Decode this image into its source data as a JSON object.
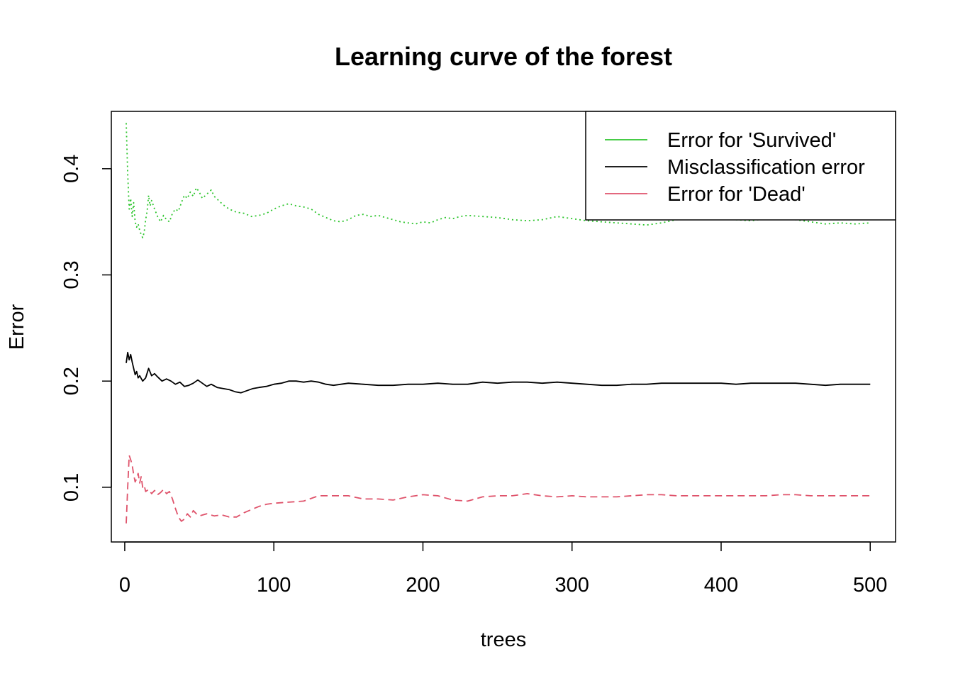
{
  "chart_data": {
    "type": "line",
    "title": "Learning curve of the forest",
    "xlabel": "trees",
    "ylabel": "Error",
    "xlim": [
      -9,
      517
    ],
    "ylim": [
      0.0485,
      0.454
    ],
    "x_ticks": [
      0,
      100,
      200,
      300,
      400,
      500
    ],
    "x_tick_labels": [
      "0",
      "100",
      "200",
      "300",
      "400",
      "500"
    ],
    "y_ticks": [
      0.1,
      0.2,
      0.3,
      0.4
    ],
    "y_tick_labels": [
      "0.1",
      "0.2",
      "0.3",
      "0.4"
    ],
    "grid": false,
    "legend_position": "top-right",
    "legend": [
      {
        "label": "Error for 'Survived'",
        "color": "#2DC52D"
      },
      {
        "label": "Misclassification error",
        "color": "#000000"
      },
      {
        "label": "Error for 'Dead'",
        "color": "#DF536B"
      }
    ],
    "series": [
      {
        "name": "Error for 'Survived'",
        "color": "#2DC52D",
        "dash": "dotted",
        "points": [
          [
            1,
            0.443
          ],
          [
            2,
            0.395
          ],
          [
            3,
            0.362
          ],
          [
            4,
            0.372
          ],
          [
            5,
            0.355
          ],
          [
            6,
            0.368
          ],
          [
            7,
            0.35
          ],
          [
            8,
            0.345
          ],
          [
            9,
            0.348
          ],
          [
            10,
            0.342
          ],
          [
            11,
            0.338
          ],
          [
            12,
            0.335
          ],
          [
            13,
            0.34
          ],
          [
            14,
            0.352
          ],
          [
            15,
            0.36
          ],
          [
            16,
            0.375
          ],
          [
            17,
            0.365
          ],
          [
            18,
            0.37
          ],
          [
            20,
            0.362
          ],
          [
            22,
            0.355
          ],
          [
            24,
            0.35
          ],
          [
            26,
            0.356
          ],
          [
            28,
            0.352
          ],
          [
            30,
            0.35
          ],
          [
            32,
            0.358
          ],
          [
            34,
            0.362
          ],
          [
            36,
            0.36
          ],
          [
            38,
            0.368
          ],
          [
            40,
            0.375
          ],
          [
            42,
            0.372
          ],
          [
            44,
            0.378
          ],
          [
            46,
            0.374
          ],
          [
            48,
            0.382
          ],
          [
            50,
            0.378
          ],
          [
            52,
            0.372
          ],
          [
            55,
            0.376
          ],
          [
            58,
            0.38
          ],
          [
            60,
            0.374
          ],
          [
            63,
            0.37
          ],
          [
            66,
            0.366
          ],
          [
            70,
            0.362
          ],
          [
            75,
            0.359
          ],
          [
            80,
            0.358
          ],
          [
            85,
            0.355
          ],
          [
            90,
            0.356
          ],
          [
            95,
            0.358
          ],
          [
            100,
            0.362
          ],
          [
            105,
            0.365
          ],
          [
            110,
            0.367
          ],
          [
            115,
            0.365
          ],
          [
            120,
            0.364
          ],
          [
            125,
            0.362
          ],
          [
            130,
            0.357
          ],
          [
            135,
            0.354
          ],
          [
            140,
            0.351
          ],
          [
            145,
            0.35
          ],
          [
            150,
            0.352
          ],
          [
            155,
            0.356
          ],
          [
            160,
            0.357
          ],
          [
            165,
            0.355
          ],
          [
            170,
            0.356
          ],
          [
            175,
            0.354
          ],
          [
            180,
            0.352
          ],
          [
            185,
            0.35
          ],
          [
            190,
            0.349
          ],
          [
            195,
            0.348
          ],
          [
            200,
            0.35
          ],
          [
            205,
            0.349
          ],
          [
            210,
            0.352
          ],
          [
            215,
            0.354
          ],
          [
            220,
            0.353
          ],
          [
            225,
            0.355
          ],
          [
            230,
            0.356
          ],
          [
            240,
            0.355
          ],
          [
            250,
            0.354
          ],
          [
            260,
            0.352
          ],
          [
            270,
            0.351
          ],
          [
            280,
            0.352
          ],
          [
            290,
            0.355
          ],
          [
            300,
            0.353
          ],
          [
            310,
            0.351
          ],
          [
            320,
            0.35
          ],
          [
            330,
            0.349
          ],
          [
            340,
            0.348
          ],
          [
            350,
            0.347
          ],
          [
            360,
            0.349
          ],
          [
            370,
            0.352
          ],
          [
            380,
            0.353
          ],
          [
            390,
            0.354
          ],
          [
            400,
            0.353
          ],
          [
            410,
            0.352
          ],
          [
            420,
            0.351
          ],
          [
            430,
            0.353
          ],
          [
            440,
            0.354
          ],
          [
            450,
            0.352
          ],
          [
            460,
            0.35
          ],
          [
            470,
            0.348
          ],
          [
            480,
            0.349
          ],
          [
            490,
            0.348
          ],
          [
            500,
            0.349
          ]
        ]
      },
      {
        "name": "Misclassification error",
        "color": "#000000",
        "dash": "solid",
        "points": [
          [
            1,
            0.217
          ],
          [
            2,
            0.227
          ],
          [
            3,
            0.22
          ],
          [
            4,
            0.225
          ],
          [
            5,
            0.218
          ],
          [
            6,
            0.212
          ],
          [
            7,
            0.206
          ],
          [
            8,
            0.209
          ],
          [
            9,
            0.203
          ],
          [
            10,
            0.205
          ],
          [
            12,
            0.2
          ],
          [
            14,
            0.203
          ],
          [
            16,
            0.212
          ],
          [
            18,
            0.205
          ],
          [
            20,
            0.207
          ],
          [
            22,
            0.204
          ],
          [
            25,
            0.2
          ],
          [
            28,
            0.202
          ],
          [
            31,
            0.2
          ],
          [
            34,
            0.197
          ],
          [
            37,
            0.199
          ],
          [
            40,
            0.195
          ],
          [
            43,
            0.196
          ],
          [
            46,
            0.198
          ],
          [
            49,
            0.201
          ],
          [
            52,
            0.198
          ],
          [
            55,
            0.195
          ],
          [
            58,
            0.197
          ],
          [
            62,
            0.194
          ],
          [
            66,
            0.193
          ],
          [
            70,
            0.192
          ],
          [
            74,
            0.19
          ],
          [
            78,
            0.189
          ],
          [
            82,
            0.191
          ],
          [
            86,
            0.193
          ],
          [
            90,
            0.194
          ],
          [
            95,
            0.195
          ],
          [
            100,
            0.197
          ],
          [
            105,
            0.198
          ],
          [
            110,
            0.2
          ],
          [
            115,
            0.2
          ],
          [
            120,
            0.199
          ],
          [
            125,
            0.2
          ],
          [
            130,
            0.199
          ],
          [
            135,
            0.197
          ],
          [
            140,
            0.196
          ],
          [
            145,
            0.197
          ],
          [
            150,
            0.198
          ],
          [
            160,
            0.197
          ],
          [
            170,
            0.196
          ],
          [
            180,
            0.196
          ],
          [
            190,
            0.197
          ],
          [
            200,
            0.197
          ],
          [
            210,
            0.198
          ],
          [
            220,
            0.197
          ],
          [
            230,
            0.197
          ],
          [
            240,
            0.199
          ],
          [
            250,
            0.198
          ],
          [
            260,
            0.199
          ],
          [
            270,
            0.199
          ],
          [
            280,
            0.198
          ],
          [
            290,
            0.199
          ],
          [
            300,
            0.198
          ],
          [
            310,
            0.197
          ],
          [
            320,
            0.196
          ],
          [
            330,
            0.196
          ],
          [
            340,
            0.197
          ],
          [
            350,
            0.197
          ],
          [
            360,
            0.198
          ],
          [
            370,
            0.198
          ],
          [
            380,
            0.198
          ],
          [
            390,
            0.198
          ],
          [
            400,
            0.198
          ],
          [
            410,
            0.197
          ],
          [
            420,
            0.198
          ],
          [
            430,
            0.198
          ],
          [
            440,
            0.198
          ],
          [
            450,
            0.198
          ],
          [
            460,
            0.197
          ],
          [
            470,
            0.196
          ],
          [
            480,
            0.197
          ],
          [
            490,
            0.197
          ],
          [
            500,
            0.197
          ]
        ]
      },
      {
        "name": "Error for 'Dead'",
        "color": "#DF536B",
        "dash": "dashed",
        "points": [
          [
            1,
            0.066
          ],
          [
            2,
            0.1
          ],
          [
            3,
            0.13
          ],
          [
            4,
            0.126
          ],
          [
            5,
            0.121
          ],
          [
            6,
            0.112
          ],
          [
            7,
            0.105
          ],
          [
            8,
            0.108
          ],
          [
            9,
            0.113
          ],
          [
            10,
            0.104
          ],
          [
            11,
            0.11
          ],
          [
            12,
            0.1
          ],
          [
            13,
            0.102
          ],
          [
            14,
            0.096
          ],
          [
            16,
            0.098
          ],
          [
            18,
            0.094
          ],
          [
            20,
            0.097
          ],
          [
            22,
            0.093
          ],
          [
            24,
            0.095
          ],
          [
            26,
            0.098
          ],
          [
            28,
            0.094
          ],
          [
            30,
            0.096
          ],
          [
            32,
            0.089
          ],
          [
            34,
            0.08
          ],
          [
            36,
            0.072
          ],
          [
            38,
            0.068
          ],
          [
            40,
            0.07
          ],
          [
            42,
            0.075
          ],
          [
            44,
            0.072
          ],
          [
            46,
            0.078
          ],
          [
            48,
            0.075
          ],
          [
            50,
            0.073
          ],
          [
            55,
            0.075
          ],
          [
            60,
            0.073
          ],
          [
            65,
            0.074
          ],
          [
            70,
            0.072
          ],
          [
            75,
            0.072
          ],
          [
            80,
            0.076
          ],
          [
            85,
            0.079
          ],
          [
            90,
            0.082
          ],
          [
            95,
            0.084
          ],
          [
            100,
            0.085
          ],
          [
            110,
            0.086
          ],
          [
            120,
            0.087
          ],
          [
            130,
            0.092
          ],
          [
            140,
            0.092
          ],
          [
            150,
            0.092
          ],
          [
            160,
            0.089
          ],
          [
            170,
            0.089
          ],
          [
            180,
            0.088
          ],
          [
            190,
            0.091
          ],
          [
            200,
            0.093
          ],
          [
            210,
            0.092
          ],
          [
            220,
            0.088
          ],
          [
            230,
            0.087
          ],
          [
            240,
            0.091
          ],
          [
            250,
            0.092
          ],
          [
            260,
            0.092
          ],
          [
            270,
            0.094
          ],
          [
            280,
            0.092
          ],
          [
            290,
            0.091
          ],
          [
            300,
            0.092
          ],
          [
            310,
            0.091
          ],
          [
            320,
            0.091
          ],
          [
            330,
            0.091
          ],
          [
            340,
            0.092
          ],
          [
            350,
            0.093
          ],
          [
            360,
            0.093
          ],
          [
            370,
            0.092
          ],
          [
            380,
            0.092
          ],
          [
            390,
            0.092
          ],
          [
            400,
            0.092
          ],
          [
            410,
            0.092
          ],
          [
            420,
            0.092
          ],
          [
            430,
            0.092
          ],
          [
            440,
            0.093
          ],
          [
            450,
            0.093
          ],
          [
            460,
            0.092
          ],
          [
            470,
            0.092
          ],
          [
            480,
            0.092
          ],
          [
            490,
            0.092
          ],
          [
            500,
            0.092
          ]
        ]
      }
    ]
  }
}
